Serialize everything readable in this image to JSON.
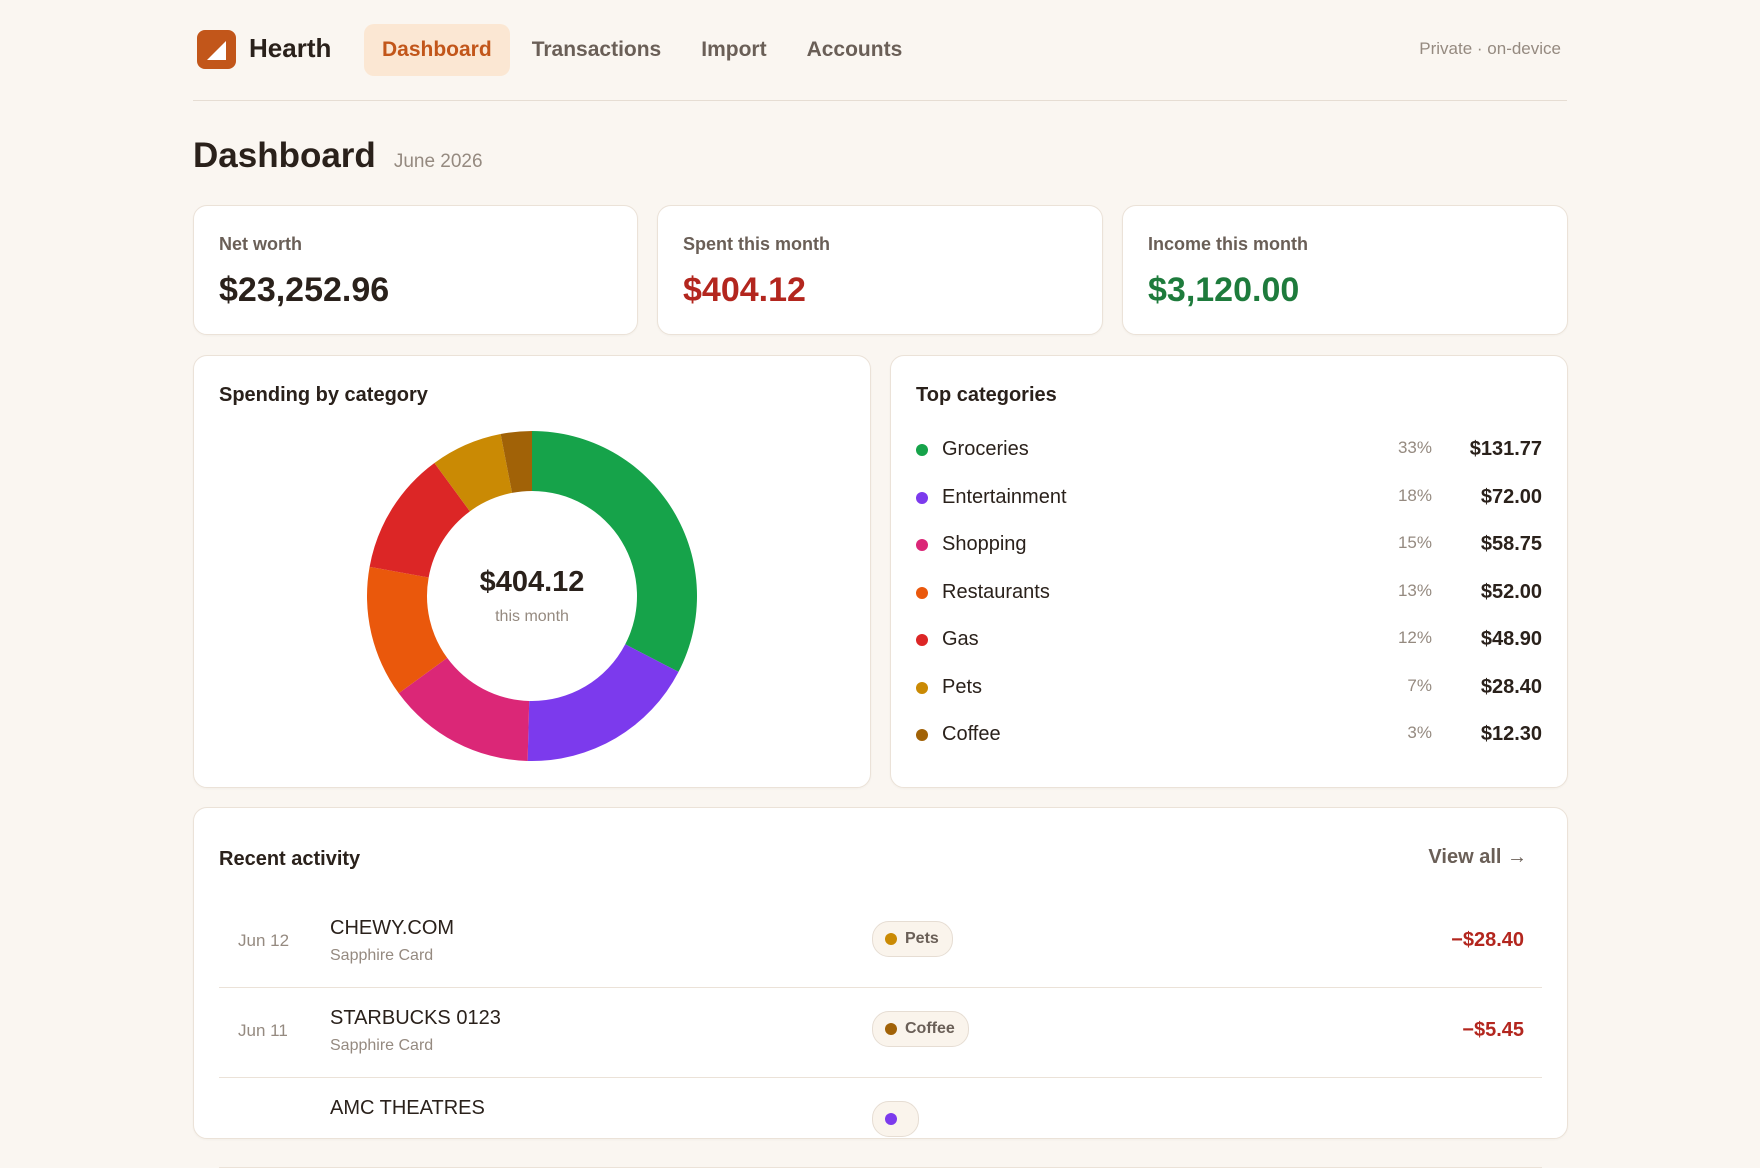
{
  "app": {
    "name": "Hearth",
    "privacy_note": "Private · on-device"
  },
  "nav": {
    "tabs": [
      {
        "label": "Dashboard",
        "active": true
      },
      {
        "label": "Transactions",
        "active": false
      },
      {
        "label": "Import",
        "active": false
      },
      {
        "label": "Accounts",
        "active": false
      }
    ]
  },
  "page": {
    "title": "Dashboard",
    "period": "June 2026"
  },
  "stats": {
    "net_worth": {
      "label": "Net worth",
      "value": "$23,252.96"
    },
    "spent": {
      "label": "Spent this month",
      "value": "$404.12"
    },
    "income": {
      "label": "Income this month",
      "value": "$3,120.00"
    }
  },
  "colors": {
    "accent": "#c2561a",
    "negative": "#b3261e",
    "positive": "#1e7b3c"
  },
  "spending": {
    "title": "Spending by category",
    "center_value": "$404.12",
    "center_label": "this month"
  },
  "chart_data": {
    "type": "pie",
    "categories": [
      "Groceries",
      "Entertainment",
      "Shopping",
      "Restaurants",
      "Gas",
      "Pets",
      "Coffee"
    ],
    "values": [
      131.77,
      72.0,
      58.75,
      52.0,
      48.9,
      28.4,
      12.3
    ],
    "colors": [
      "#16a34a",
      "#7c3aed",
      "#db2777",
      "#ea580c",
      "#dc2626",
      "#ca8a04",
      "#a16207"
    ],
    "donut": true
  },
  "top_categories": {
    "title": "Top categories",
    "items": [
      {
        "name": "Groceries",
        "pct": "33%",
        "amount": "$131.77",
        "color": "#16a34a"
      },
      {
        "name": "Entertainment",
        "pct": "18%",
        "amount": "$72.00",
        "color": "#7c3aed"
      },
      {
        "name": "Shopping",
        "pct": "15%",
        "amount": "$58.75",
        "color": "#db2777"
      },
      {
        "name": "Restaurants",
        "pct": "13%",
        "amount": "$52.00",
        "color": "#ea580c"
      },
      {
        "name": "Gas",
        "pct": "12%",
        "amount": "$48.90",
        "color": "#dc2626"
      },
      {
        "name": "Pets",
        "pct": "7%",
        "amount": "$28.40",
        "color": "#ca8a04"
      },
      {
        "name": "Coffee",
        "pct": "3%",
        "amount": "$12.30",
        "color": "#a16207"
      }
    ]
  },
  "recent": {
    "title": "Recent activity",
    "view_all": "View all →",
    "transactions": [
      {
        "date": "Jun 12",
        "merchant": "CHEWY.COM",
        "account": "Sapphire Card",
        "category": "Pets",
        "category_color": "#ca8a04",
        "amount": "−$28.40"
      },
      {
        "date": "Jun 11",
        "merchant": "STARBUCKS 0123",
        "account": "Sapphire Card",
        "category": "Coffee",
        "category_color": "#a16207",
        "amount": "−$5.45"
      },
      {
        "date": "",
        "merchant": "AMC THEATRES",
        "account": "",
        "category": "",
        "category_color": "#7c3aed",
        "amount": ""
      }
    ]
  }
}
